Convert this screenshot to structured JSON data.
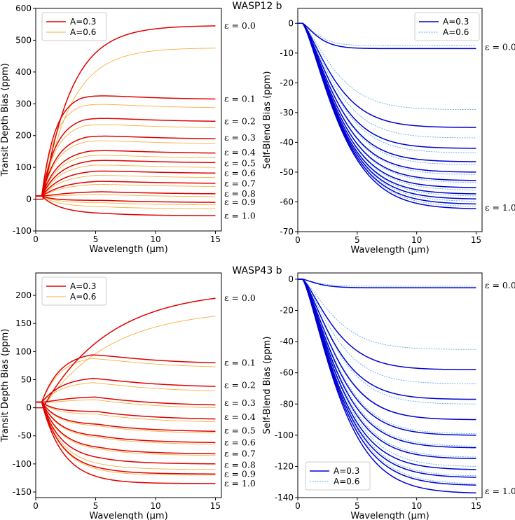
{
  "figure": {
    "titles": [
      "WASP12 b",
      "WASP43 b"
    ]
  },
  "chart_data": [
    {
      "type": "line",
      "planet": "WASP12 b",
      "xlabel": "Wavelength (μm)",
      "ylabel": "Transit Depth Bias (ppm)",
      "xlim": [
        0,
        15.5
      ],
      "ylim": [
        -100,
        600
      ],
      "xticks": [
        0,
        5,
        10,
        15
      ],
      "yticks": [
        -100,
        0,
        100,
        200,
        300,
        400,
        500,
        600
      ],
      "grid": false,
      "legend": {
        "position": "top-left",
        "entries": [
          "A=0.3",
          "A=0.6"
        ]
      },
      "colors": {
        "A=0.3": "#e00000",
        "A=0.6": "#f5b041"
      },
      "epsilon_labels": [
        "ε = 0.0",
        "ε = 0.1",
        "ε = 0.2",
        "ε = 0.3",
        "ε = 0.4",
        "ε = 0.5",
        "ε = 0.6",
        "ε = 0.7",
        "ε = 0.8",
        "ε = 0.9",
        "ε = 1.0"
      ],
      "epsilon_label_y": [
        545,
        315,
        245,
        193,
        147,
        112,
        82,
        49,
        17,
        -10,
        -53
      ],
      "series": [
        {
          "name": "A=0.3",
          "final": [
            545,
            315,
            245,
            190,
            145,
            115,
            82,
            50,
            17,
            -10,
            -52
          ]
        },
        {
          "name": "A=0.6",
          "final": [
            475,
            288,
            225,
            175,
            130,
            100,
            68,
            40,
            8,
            -18,
            -30
          ]
        }
      ]
    },
    {
      "type": "line",
      "planet": "WASP12 b",
      "xlabel": "Wavelength (μm)",
      "ylabel": "Self-Blend Bias (ppm)",
      "xlim": [
        0,
        15.5
      ],
      "ylim": [
        -70,
        5
      ],
      "xticks": [
        0,
        5,
        10,
        15
      ],
      "yticks": [
        -70,
        -60,
        -50,
        -40,
        -30,
        -20,
        -10,
        0
      ],
      "grid": false,
      "legend": {
        "position": "top-right",
        "entries": [
          "A=0.3",
          "A=0.6"
        ]
      },
      "colors": {
        "A=0.3": "#0000d0",
        "A=0.6": "#5dade2"
      },
      "epsilon_labels": [
        "ε = 0.0",
        "ε = 1.0"
      ],
      "epsilon_label_y": [
        -8,
        -62
      ],
      "series": [
        {
          "name": "A=0.3",
          "final": [
            -8.5,
            -35,
            -42,
            -46.5,
            -50,
            -52.8,
            -55.2,
            -57.3,
            -59,
            -60.7,
            -62.3
          ]
        },
        {
          "name": "A=0.6",
          "final": [
            -7.5,
            -29,
            -38.5,
            -43.5,
            -47.5,
            -50.8,
            -53.5,
            -56,
            -58,
            -59.8,
            -61.5
          ]
        }
      ]
    },
    {
      "type": "line",
      "planet": "WASP43 b",
      "xlabel": "Wavelength (μm)",
      "ylabel": "Transit Depth Bias (ppm)",
      "xlim": [
        0,
        15.5
      ],
      "ylim": [
        -160,
        240
      ],
      "xticks": [
        0,
        5,
        10,
        15
      ],
      "yticks": [
        -150,
        -100,
        -50,
        0,
        50,
        100,
        150,
        200
      ],
      "grid": false,
      "legend": {
        "position": "top-left",
        "entries": [
          "A=0.3",
          "A=0.6"
        ]
      },
      "colors": {
        "A=0.3": "#e00000",
        "A=0.6": "#f5b041"
      },
      "epsilon_labels": [
        "ε = 0.0",
        "ε = 0.1",
        "ε = 0.2",
        "ε = 0.3",
        "ε = 0.4",
        "ε = 0.5",
        "ε = 0.6",
        "ε = 0.7",
        "ε = 0.8",
        "ε = 0.9",
        "ε = 1.0"
      ],
      "epsilon_label_y": [
        195,
        80,
        40,
        8,
        -17,
        -41,
        -62,
        -82,
        -102,
        -118,
        -135
      ],
      "series": [
        {
          "name": "A=0.3",
          "final": [
            195,
            80,
            38,
            5,
            -20,
            -42,
            -62,
            -82,
            -100,
            -118,
            -135
          ]
        },
        {
          "name": "A=0.6",
          "final": [
            163,
            73,
            30,
            0,
            -25,
            -45,
            -65,
            -85,
            -100,
            -110,
            -120
          ]
        }
      ]
    },
    {
      "type": "line",
      "planet": "WASP43 b",
      "xlabel": "Wavelength (μm)",
      "ylabel": "Self-Blend Bias (ppm)",
      "xlim": [
        0,
        15.5
      ],
      "ylim": [
        -140,
        4
      ],
      "xticks": [
        0,
        5,
        10,
        15
      ],
      "yticks": [
        -140,
        -120,
        -100,
        -80,
        -60,
        -40,
        -20,
        0
      ],
      "grid": false,
      "legend": {
        "position": "bottom-left",
        "entries": [
          "A=0.3",
          "A=0.6"
        ]
      },
      "colors": {
        "A=0.3": "#0000d0",
        "A=0.6": "#5dade2"
      },
      "epsilon_labels": [
        "ε = 0.0",
        "ε = 1.0"
      ],
      "epsilon_label_y": [
        -4,
        -136
      ],
      "series": [
        {
          "name": "A=0.3",
          "final": [
            -5.5,
            -58,
            -77,
            -90,
            -100,
            -108,
            -115,
            -122,
            -127,
            -132,
            -137
          ]
        },
        {
          "name": "A=0.6",
          "final": [
            -4.5,
            -45,
            -67,
            -80,
            -90,
            -99,
            -107,
            -114,
            -120,
            -126,
            -131
          ]
        }
      ]
    }
  ]
}
